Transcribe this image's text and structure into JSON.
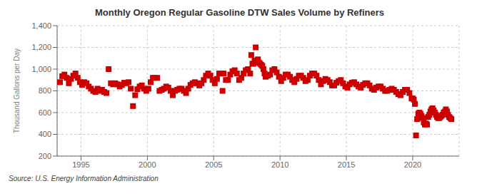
{
  "chart_data": {
    "type": "scatter",
    "title": "Monthly Oregon Regular Gasoline DTW Sales Volume by Refiners",
    "ylabel": "Thousand Gallons per Day",
    "annotations": [
      "Source: U.S. Energy Information Administration"
    ],
    "color": "#cc0000",
    "marker": "square",
    "grid": true,
    "xlim": [
      1993.2,
      2023.5
    ],
    "xticks": [
      1995,
      2000,
      2005,
      2010,
      2015,
      2020
    ],
    "ylim": [
      200,
      1400
    ],
    "yticks": [
      200,
      400,
      600,
      800,
      {
        "value": 1000,
        "label": "1,000"
      },
      {
        "value": 1200,
        "label": "1,200"
      },
      {
        "value": 1400,
        "label": "1,400"
      }
    ],
    "x": [
      1993.4166666666667,
      1993.5833333333333,
      1993.75,
      1993.9166666666667,
      1994.0833333333333,
      1994.25,
      1994.4166666666667,
      1994.5833333333333,
      1994.75,
      1994.9166666666667,
      1995.0833333333333,
      1995.25,
      1995.4166666666667,
      1995.5833333333333,
      1995.75,
      1995.9166666666667,
      1996.0833333333333,
      1996.25,
      1996.4166666666667,
      1996.5833333333333,
      1996.75,
      1996.9166666666667,
      1997.0833333333333,
      1997.25,
      1997.4166666666667,
      1997.5833333333333,
      1997.75,
      1997.9166666666667,
      1998.0833333333333,
      1998.25,
      1998.4166666666667,
      1998.5833333333333,
      1998.75,
      1998.9166666666667,
      1999.0833333333333,
      1999.25,
      1999.4166666666667,
      1999.5833333333333,
      1999.75,
      1999.9166666666667,
      2000.0833333333333,
      2000.25,
      2000.4166666666667,
      2000.5833333333333,
      2000.75,
      2000.9166666666667,
      2001.0833333333333,
      2001.25,
      2001.4166666666667,
      2001.5833333333333,
      2001.75,
      2001.9166666666667,
      2002.0833333333333,
      2002.25,
      2002.4166666666667,
      2002.5833333333333,
      2002.75,
      2002.9166666666667,
      2003.0833333333333,
      2003.25,
      2003.4166666666667,
      2003.5833333333333,
      2003.75,
      2003.9166666666667,
      2004.0833333333333,
      2004.25,
      2004.4166666666667,
      2004.5833333333333,
      2004.75,
      2004.9166666666667,
      2005.0833333333333,
      2005.25,
      2005.4166666666667,
      2005.5833333333333,
      2005.6666666666667,
      2005.75,
      2005.9166666666667,
      2006.0833333333333,
      2006.25,
      2006.4166666666667,
      2006.5833333333333,
      2006.75,
      2006.9166666666667,
      2007.0833333333333,
      2007.25,
      2007.4166666666667,
      2007.5833333333333,
      2007.75,
      2007.8333333333333,
      2007.9166666666667,
      2008,
      2008.0833333333333,
      2008.1666666666667,
      2008.25,
      2008.3333333333333,
      2008.4166666666667,
      2008.5,
      2008.5833333333333,
      2008.6666666666667,
      2008.75,
      2008.8333333333333,
      2008.9166666666667,
      2009.0833333333333,
      2009.25,
      2009.4166666666667,
      2009.5833333333333,
      2009.75,
      2009.9166666666667,
      2010.0833333333333,
      2010.25,
      2010.4166666666667,
      2010.5833333333333,
      2010.75,
      2010.9166666666667,
      2011.0833333333333,
      2011.25,
      2011.4166666666667,
      2011.5833333333333,
      2011.75,
      2011.9166666666667,
      2012.0833333333333,
      2012.25,
      2012.4166666666667,
      2012.5833333333333,
      2012.75,
      2012.9166666666667,
      2013.0833333333333,
      2013.25,
      2013.4166666666667,
      2013.5833333333333,
      2013.75,
      2013.9166666666667,
      2014.0833333333333,
      2014.25,
      2014.4166666666667,
      2014.5833333333333,
      2014.75,
      2014.9166666666667,
      2015.0833333333333,
      2015.25,
      2015.4166666666667,
      2015.5833333333333,
      2015.75,
      2015.9166666666667,
      2016.0833333333333,
      2016.25,
      2016.4166666666667,
      2016.5833333333333,
      2016.75,
      2016.9166666666667,
      2017.0833333333333,
      2017.25,
      2017.4166666666667,
      2017.5833333333333,
      2017.75,
      2017.9166666666667,
      2018.0833333333333,
      2018.25,
      2018.4166666666667,
      2018.5833333333333,
      2018.75,
      2018.9166666666667,
      2019.0833333333333,
      2019.25,
      2019.4166666666667,
      2019.5833333333333,
      2019.75,
      2019.9166666666667,
      2020,
      2020.0833333333333,
      2020.1666666666667,
      2020.25,
      2020.3333333333333,
      2020.4166666666667,
      2020.5,
      2020.5833333333333,
      2020.6666666666667,
      2020.75,
      2020.8333333333333,
      2020.9166666666667,
      2021,
      2021.0833333333333,
      2021.1666666666667,
      2021.25,
      2021.3333333333333,
      2021.4166666666667,
      2021.5,
      2021.5833333333333,
      2021.6666666666667,
      2021.75,
      2021.8333333333333,
      2021.9166666666667,
      2022,
      2022.0833333333333,
      2022.1666666666667,
      2022.25,
      2022.3333333333333,
      2022.4166666666667,
      2022.5,
      2022.5833333333333,
      2022.6666666666667,
      2022.75,
      2022.8333333333333,
      2022.9166666666667
    ],
    "values": [
      880,
      935,
      950,
      920,
      870,
      910,
      940,
      960,
      920,
      880,
      855,
      880,
      870,
      840,
      820,
      800,
      790,
      820,
      800,
      810,
      790,
      780,
      1000,
      870,
      860,
      870,
      860,
      840,
      855,
      875,
      870,
      880,
      820,
      660,
      760,
      815,
      840,
      850,
      820,
      800,
      820,
      880,
      920,
      920,
      920,
      800,
      810,
      820,
      840,
      830,
      800,
      760,
      800,
      810,
      820,
      820,
      800,
      780,
      820,
      855,
      870,
      880,
      870,
      850,
      870,
      900,
      940,
      960,
      940,
      900,
      870,
      910,
      960,
      960,
      800,
      960,
      900,
      900,
      950,
      980,
      990,
      960,
      900,
      920,
      960,
      990,
      1000,
      960,
      1130,
      1050,
      1050,
      1080,
      1200,
      1070,
      1090,
      1060,
      1050,
      1040,
      1030,
      1000,
      960,
      930,
      940,
      950,
      990,
      1000,
      970,
      930,
      890,
      920,
      950,
      950,
      930,
      900,
      880,
      910,
      940,
      940,
      920,
      890,
      900,
      940,
      960,
      960,
      940,
      900,
      860,
      890,
      910,
      900,
      880,
      850,
      850,
      875,
      890,
      900,
      870,
      840,
      830,
      860,
      875,
      880,
      860,
      840,
      830,
      855,
      870,
      870,
      850,
      820,
      810,
      830,
      840,
      840,
      820,
      800,
      800,
      810,
      820,
      810,
      790,
      770,
      760,
      790,
      810,
      810,
      780,
      730,
      730,
      720,
      680,
      390,
      540,
      590,
      600,
      590,
      570,
      550,
      510,
      490,
      500,
      490,
      560,
      580,
      610,
      630,
      640,
      620,
      600,
      580,
      560,
      550,
      550,
      560,
      570,
      580,
      600,
      610,
      630,
      610,
      580,
      560,
      550,
      540
    ]
  }
}
